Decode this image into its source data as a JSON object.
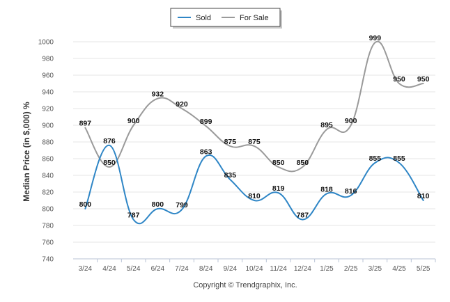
{
  "chart_data": {
    "type": "line",
    "categories": [
      "3/24",
      "4/24",
      "5/24",
      "6/24",
      "7/24",
      "8/24",
      "9/24",
      "10/24",
      "11/24",
      "12/24",
      "1/25",
      "2/25",
      "3/25",
      "4/25",
      "5/25"
    ],
    "series": [
      {
        "name": "Sold",
        "color": "#2f86c6",
        "values": [
          800,
          876,
          787,
          800,
          799,
          863,
          835,
          810,
          819,
          787,
          818,
          816,
          855,
          855,
          810
        ]
      },
      {
        "name": "For Sale",
        "color": "#9a9a9a",
        "values": [
          897,
          850,
          900,
          932,
          920,
          899,
          875,
          875,
          850,
          850,
          895,
          900,
          999,
          950,
          950
        ]
      }
    ],
    "ylabel": "Median Price (in $,000) %",
    "xlabel": "",
    "ylim": [
      740,
      1000
    ],
    "yticks": [
      740,
      760,
      780,
      800,
      820,
      840,
      860,
      880,
      900,
      920,
      940,
      960,
      980,
      1000
    ],
    "grid": true,
    "legend": "top-center",
    "footer": "Copyright © Trendgraphix, Inc."
  }
}
